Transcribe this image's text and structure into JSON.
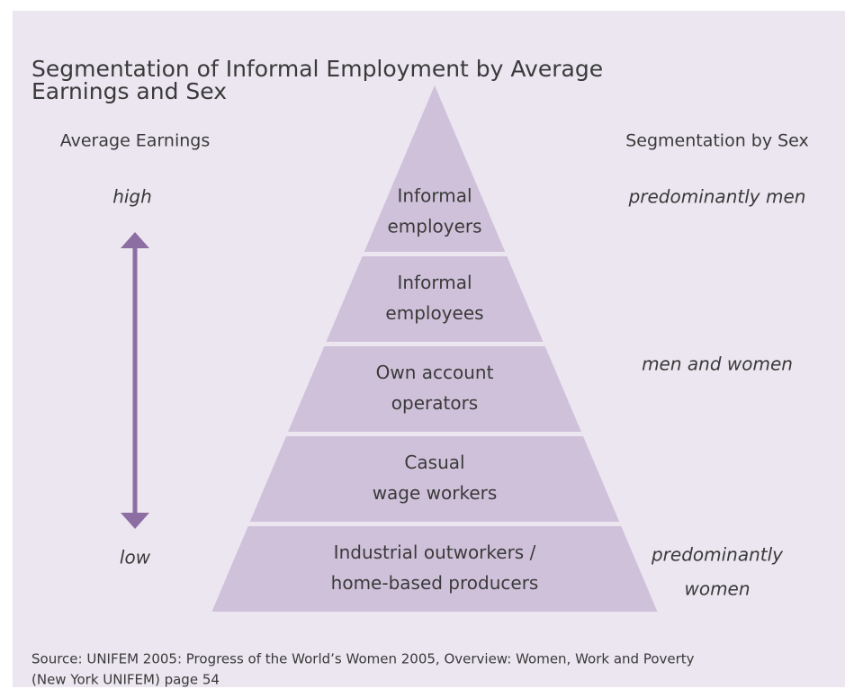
{
  "title": [
    "Segmentation of Informal Employment by Average",
    "Earnings and Sex"
  ],
  "left_header": "Average Earnings",
  "right_header": "Segmentation by Sex",
  "earnings_high": "high",
  "earnings_low": "low",
  "levels": [
    {
      "label": [
        "Informal",
        "employers"
      ]
    },
    {
      "label": [
        "Informal",
        "employees"
      ]
    },
    {
      "label": [
        "Own account",
        "operators"
      ]
    },
    {
      "label": [
        "Casual",
        "wage workers"
      ]
    },
    {
      "label": [
        "Industrial outworkers /",
        "home-based producers"
      ]
    }
  ],
  "sex_labels": [
    [
      "predominantly men"
    ],
    [
      "men and women"
    ],
    [
      "predominantly",
      "women"
    ]
  ],
  "source": [
    "Source: UNIFEM 2005: Progress of the World’s Women 2005, Overview: Women, Work and Poverty",
    "(New York UNIFEM) page 54"
  ]
}
